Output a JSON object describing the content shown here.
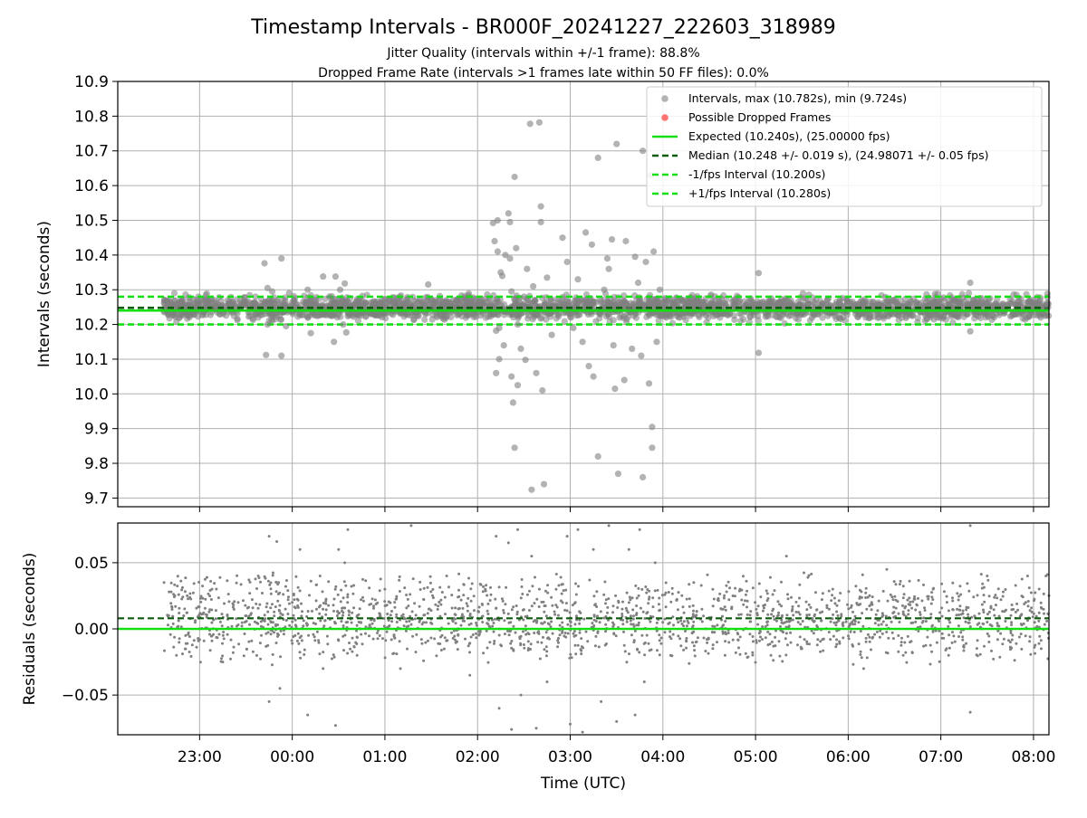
{
  "title": "Timestamp Intervals - BR000F_20241227_222603_318989",
  "subtitle_1": "Jitter Quality (intervals within +/-1 frame): 88.8%",
  "subtitle_2": "Dropped Frame Rate (intervals >1 frames late within 50 FF files): 0.0%",
  "colors": {
    "points": "#808080",
    "dropped": "#ff5050",
    "expected": "#12e012",
    "median": "#0c5a0c",
    "interval": "#12e012",
    "grid": "#b0b0b0"
  },
  "chart_data": [
    {
      "type": "scatter",
      "ylabel": "Intervals (seconds)",
      "xlim": [
        "22:07",
        "08:10"
      ],
      "ylim": [
        9.675,
        10.9
      ],
      "y_ticks": [
        "9.7",
        "9.8",
        "9.9",
        "10.0",
        "10.1",
        "10.2",
        "10.3",
        "10.4",
        "10.5",
        "10.6",
        "10.7",
        "10.8",
        "10.9"
      ],
      "grid": true,
      "legend_position": "top-right",
      "legend": [
        "Intervals, max (10.782s), min (9.724s)",
        "Possible Dropped Frames",
        "Expected (10.240s), (25.00000 fps)",
        "Median (10.248 +/- 0.019 s), (24.98071 +/- 0.05 fps)",
        "-1/fps Interval (10.200s)",
        "+1/fps Interval (10.280s)"
      ],
      "lines": {
        "expected": 10.24,
        "median": 10.248,
        "minus_one_fps": 10.2,
        "plus_one_fps": 10.28
      },
      "intervals_max": 10.782,
      "intervals_min": 9.724,
      "series": [
        {
          "name": "Intervals",
          "points": [
            [
              "22:37",
              10.262
            ],
            [
              "22:46",
              10.255
            ],
            [
              "22:58",
              10.27
            ],
            [
              "23:10",
              10.25
            ],
            [
              "23:21",
              10.265
            ],
            [
              "23:29",
              10.278
            ],
            [
              "23:42",
              10.376
            ],
            [
              "23:44",
              10.305
            ],
            [
              "23:47",
              10.295
            ],
            [
              "23:44",
              10.2
            ],
            [
              "23:43",
              10.112
            ],
            [
              "23:53",
              10.39
            ],
            [
              "23:53",
              10.11
            ],
            [
              "23:56",
              10.195
            ],
            [
              "23:58",
              10.29
            ],
            [
              "00:10",
              10.3
            ],
            [
              "00:12",
              10.175
            ],
            [
              "00:20",
              10.338
            ],
            [
              "00:24",
              10.28
            ],
            [
              "00:27",
              10.15
            ],
            [
              "00:28",
              10.338
            ],
            [
              "00:31",
              10.3
            ],
            [
              "00:33",
              10.2
            ],
            [
              "00:34",
              10.318
            ],
            [
              "00:35",
              10.177
            ],
            [
              "00:42",
              10.268
            ],
            [
              "00:58",
              10.26
            ],
            [
              "01:14",
              10.272
            ],
            [
              "01:28",
              10.315
            ],
            [
              "01:31",
              10.255
            ],
            [
              "01:45",
              10.26
            ],
            [
              "02:03",
              10.27
            ],
            [
              "02:10",
              10.492
            ],
            [
              "02:11",
              10.44
            ],
            [
              "02:11",
              10.262
            ],
            [
              "02:12",
              10.182
            ],
            [
              "02:12",
              10.06
            ],
            [
              "02:13",
              10.5
            ],
            [
              "02:13",
              10.41
            ],
            [
              "02:14",
              10.19
            ],
            [
              "02:14",
              10.1
            ],
            [
              "02:15",
              10.35
            ],
            [
              "02:16",
              10.34
            ],
            [
              "02:17",
              10.14
            ],
            [
              "02:18",
              10.4
            ],
            [
              "02:20",
              10.52
            ],
            [
              "02:21",
              10.495
            ],
            [
              "02:21",
              10.39
            ],
            [
              "02:22",
              10.295
            ],
            [
              "02:22",
              10.05
            ],
            [
              "02:23",
              9.975
            ],
            [
              "02:24",
              10.625
            ],
            [
              "02:24",
              9.845
            ],
            [
              "02:25",
              10.42
            ],
            [
              "02:26",
              10.2
            ],
            [
              "02:26",
              10.025
            ],
            [
              "02:28",
              10.13
            ],
            [
              "02:30",
              10.28
            ],
            [
              "02:31",
              10.098
            ],
            [
              "02:32",
              10.36
            ],
            [
              "02:34",
              10.778
            ],
            [
              "02:35",
              9.724
            ],
            [
              "02:36",
              10.31
            ],
            [
              "02:38",
              10.06
            ],
            [
              "02:40",
              10.782
            ],
            [
              "02:41",
              10.54
            ],
            [
              "02:41",
              10.495
            ],
            [
              "02:42",
              10.01
            ],
            [
              "02:43",
              9.74
            ],
            [
              "02:45",
              10.335
            ],
            [
              "02:48",
              10.17
            ],
            [
              "02:55",
              10.45
            ],
            [
              "02:58",
              10.38
            ],
            [
              "03:00",
              10.23
            ],
            [
              "03:02",
              10.19
            ],
            [
              "03:05",
              10.33
            ],
            [
              "03:08",
              10.15
            ],
            [
              "03:10",
              10.465
            ],
            [
              "03:12",
              10.08
            ],
            [
              "03:14",
              10.43
            ],
            [
              "03:15",
              10.05
            ],
            [
              "03:18",
              10.68
            ],
            [
              "03:18",
              9.82
            ],
            [
              "03:22",
              10.3
            ],
            [
              "03:24",
              10.39
            ],
            [
              "03:25",
              10.36
            ],
            [
              "03:27",
              10.445
            ],
            [
              "03:28",
              10.14
            ],
            [
              "03:29",
              10.015
            ],
            [
              "03:30",
              10.72
            ],
            [
              "03:31",
              9.77
            ],
            [
              "03:32",
              10.22
            ],
            [
              "03:35",
              10.04
            ],
            [
              "03:36",
              10.44
            ],
            [
              "03:38",
              10.25
            ],
            [
              "03:40",
              10.13
            ],
            [
              "03:42",
              10.395
            ],
            [
              "03:44",
              10.32
            ],
            [
              "03:46",
              10.11
            ],
            [
              "03:47",
              10.7
            ],
            [
              "03:47",
              9.76
            ],
            [
              "03:49",
              10.38
            ],
            [
              "03:51",
              10.03
            ],
            [
              "03:52",
              10.63
            ],
            [
              "03:53",
              9.905
            ],
            [
              "03:53",
              9.845
            ],
            [
              "03:54",
              10.41
            ],
            [
              "03:56",
              10.15
            ],
            [
              "03:58",
              10.3
            ],
            [
              "04:12",
              10.27
            ],
            [
              "04:25",
              10.255
            ],
            [
              "04:38",
              10.26
            ],
            [
              "05:02",
              10.348
            ],
            [
              "05:02",
              10.118
            ],
            [
              "05:20",
              10.27
            ],
            [
              "05:44",
              10.26
            ],
            [
              "06:10",
              10.265
            ],
            [
              "06:40",
              10.258
            ],
            [
              "07:05",
              10.268
            ],
            [
              "07:19",
              10.32
            ],
            [
              "07:19",
              10.18
            ],
            [
              "07:40",
              10.26
            ],
            [
              "08:00",
              10.262
            ],
            [
              "08:08",
              10.255
            ]
          ]
        }
      ]
    },
    {
      "type": "scatter",
      "ylabel": "Residuals (seconds)",
      "xlabel": "Time (UTC)",
      "xlim": [
        "22:07",
        "08:10"
      ],
      "ylim": [
        -0.08,
        0.08
      ],
      "y_ticks": [
        "−0.05",
        "0.00",
        "0.05"
      ],
      "x_ticks": [
        "23:00",
        "00:00",
        "01:00",
        "02:00",
        "03:00",
        "04:00",
        "05:00",
        "06:00",
        "07:00",
        "08:00"
      ],
      "grid": true,
      "lines": {
        "expected": 0.0,
        "median": 0.008
      },
      "series": [
        {
          "name": "Residuals",
          "points": [
            [
              "22:37",
              0.035
            ],
            [
              "22:40",
              0.01
            ],
            [
              "22:45",
              -0.02
            ],
            [
              "22:52",
              0.025
            ],
            [
              "23:00",
              0.0
            ],
            [
              "23:08",
              0.03
            ],
            [
              "23:15",
              -0.025
            ],
            [
              "23:25",
              0.02
            ],
            [
              "23:38",
              0.04
            ],
            [
              "23:45",
              0.07
            ],
            [
              "23:45",
              -0.055
            ],
            [
              "23:50",
              0.066
            ],
            [
              "23:52",
              -0.045
            ],
            [
              "24:00",
              0.02
            ],
            [
              "00:05",
              0.06
            ],
            [
              "00:10",
              -0.065
            ],
            [
              "00:18",
              0.04
            ],
            [
              "00:20",
              -0.03
            ],
            [
              "00:28",
              -0.073
            ],
            [
              "00:30",
              0.06
            ],
            [
              "00:34",
              0.05
            ],
            [
              "00:36",
              0.075
            ],
            [
              "00:42",
              -0.02
            ],
            [
              "01:00",
              0.03
            ],
            [
              "01:10",
              -0.03
            ],
            [
              "01:17",
              0.078
            ],
            [
              "01:25",
              0.005
            ],
            [
              "01:40",
              0.04
            ],
            [
              "01:55",
              -0.035
            ],
            [
              "02:05",
              0.03
            ],
            [
              "02:12",
              0.07
            ],
            [
              "02:14",
              -0.06
            ],
            [
              "02:20",
              0.065
            ],
            [
              "02:22",
              -0.076
            ],
            [
              "02:26",
              0.075
            ],
            [
              "02:28",
              -0.05
            ],
            [
              "02:35",
              0.055
            ],
            [
              "02:38",
              -0.075
            ],
            [
              "02:40",
              0.03
            ],
            [
              "02:45",
              -0.04
            ],
            [
              "02:58",
              0.07
            ],
            [
              "03:00",
              -0.072
            ],
            [
              "03:05",
              0.075
            ],
            [
              "03:08",
              -0.078
            ],
            [
              "03:15",
              0.06
            ],
            [
              "03:20",
              -0.055
            ],
            [
              "03:25",
              0.078
            ],
            [
              "03:30",
              -0.07
            ],
            [
              "03:38",
              0.06
            ],
            [
              "03:42",
              -0.065
            ],
            [
              "03:45",
              0.075
            ],
            [
              "03:48",
              -0.04
            ],
            [
              "03:55",
              0.05
            ],
            [
              "04:05",
              -0.02
            ],
            [
              "04:20",
              0.035
            ],
            [
              "04:35",
              -0.01
            ],
            [
              "04:50",
              0.03
            ],
            [
              "05:10",
              -0.02
            ],
            [
              "05:20",
              0.055
            ],
            [
              "05:30",
              -0.015
            ],
            [
              "05:50",
              0.03
            ],
            [
              "06:10",
              -0.03
            ],
            [
              "06:25",
              0.045
            ],
            [
              "06:40",
              -0.01
            ],
            [
              "06:55",
              0.03
            ],
            [
              "07:05",
              -0.02
            ],
            [
              "07:19",
              0.078
            ],
            [
              "07:19",
              -0.063
            ],
            [
              "07:30",
              0.04
            ],
            [
              "07:45",
              -0.01
            ],
            [
              "07:55",
              0.02
            ],
            [
              "08:05",
              -0.015
            ],
            [
              "08:08",
              0.04
            ]
          ]
        }
      ]
    }
  ]
}
